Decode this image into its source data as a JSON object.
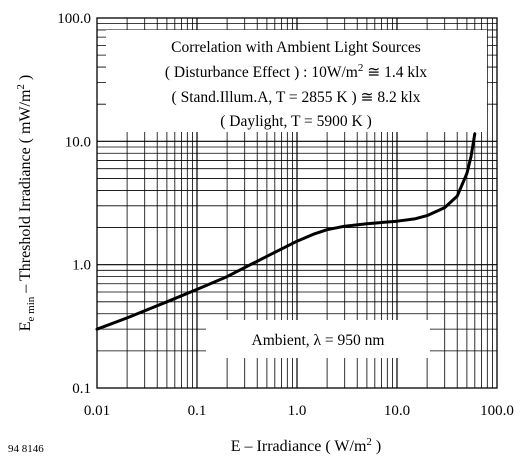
{
  "chart_data": {
    "type": "line",
    "x_scale": "log",
    "y_scale": "log",
    "xlim": [
      0.01,
      100
    ],
    "ylim": [
      0.1,
      100
    ],
    "grid": true,
    "x_ticks": [
      {
        "value": 0.01,
        "label": "0.01"
      },
      {
        "value": 0.1,
        "label": "0.1"
      },
      {
        "value": 1,
        "label": "1.0"
      },
      {
        "value": 10,
        "label": "10.0"
      },
      {
        "value": 100,
        "label": "100.0"
      }
    ],
    "y_ticks": [
      {
        "value": 0.1,
        "label": "0.1"
      },
      {
        "value": 1,
        "label": "1.0"
      },
      {
        "value": 10,
        "label": "10.0"
      },
      {
        "value": 100,
        "label": "100.0"
      }
    ],
    "xlabel": {
      "main": "E – Irradiance ( W/m",
      "sup": "2",
      "end": " )"
    },
    "ylabel": {
      "sym": "E",
      "sub": "e min",
      "main": " – Threshold Irradiance ( mW/m",
      "sup": "2",
      "end": " )"
    },
    "series": [
      {
        "x": [
          0.01,
          0.02,
          0.05,
          0.1,
          0.2,
          0.5,
          1.0,
          1.5,
          2.0,
          3.0,
          5.0,
          10.0,
          15.0,
          20.0,
          30.0,
          40.0,
          50.0,
          55.0,
          60.0
        ],
        "y": [
          0.3,
          0.37,
          0.5,
          0.63,
          0.8,
          1.17,
          1.55,
          1.78,
          1.92,
          2.05,
          2.15,
          2.25,
          2.35,
          2.5,
          2.9,
          3.6,
          5.5,
          7.5,
          11.5
        ]
      }
    ],
    "annotations": {
      "box_lines": [
        {
          "text": "Correlation with Ambient Light Sources"
        },
        {
          "pre": "( Disturbance Effect ) : 10W/m",
          "sup": "2",
          "post": " ≅ 1.4 klx"
        },
        {
          "text": "( Stand.Illum.A, T = 2855 K ) ≅ 8.2 klx"
        },
        {
          "text": "( Daylight, T = 5900 K )"
        }
      ],
      "ambient_label": "Ambient, λ = 950 nm"
    },
    "figure_code": "94 8146"
  }
}
